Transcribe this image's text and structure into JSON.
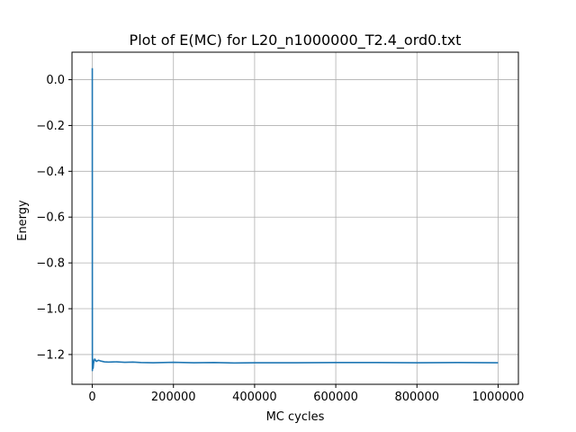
{
  "chart_data": {
    "type": "line",
    "title": "Plot of E(MC) for L20_n1000000_T2.4_ord0.txt",
    "xlabel": "MC cycles",
    "ylabel": "Energy",
    "xlim": [
      -50000,
      1050000
    ],
    "ylim": [
      -1.33,
      0.12
    ],
    "xticks": [
      0,
      200000,
      400000,
      600000,
      800000,
      1000000
    ],
    "xtick_labels": [
      "0",
      "200000",
      "400000",
      "600000",
      "800000",
      "1000000"
    ],
    "yticks": [
      0.0,
      -0.2,
      -0.4,
      -0.6,
      -0.8,
      -1.0,
      -1.2
    ],
    "ytick_labels": [
      "0.0",
      "−0.2",
      "−0.4",
      "−0.6",
      "−0.8",
      "−1.0",
      "−1.2"
    ],
    "grid": true,
    "series": [
      {
        "color": "#1f77b4",
        "x": [
          0,
          200,
          500,
          1000,
          2000,
          3000,
          4000,
          6000,
          8000,
          10000,
          15000,
          20000,
          30000,
          40000,
          60000,
          80000,
          100000,
          120000,
          150000,
          200000,
          250000,
          300000,
          350000,
          400000,
          500000,
          600000,
          700000,
          800000,
          900000,
          1000000
        ],
        "y": [
          0.05,
          -1.27,
          -1.25,
          -1.22,
          -1.26,
          -1.24,
          -1.23,
          -1.22,
          -1.225,
          -1.23,
          -1.225,
          -1.228,
          -1.232,
          -1.233,
          -1.232,
          -1.234,
          -1.233,
          -1.235,
          -1.236,
          -1.234,
          -1.236,
          -1.235,
          -1.237,
          -1.236,
          -1.236,
          -1.235,
          -1.235,
          -1.236,
          -1.235,
          -1.236
        ]
      }
    ]
  }
}
